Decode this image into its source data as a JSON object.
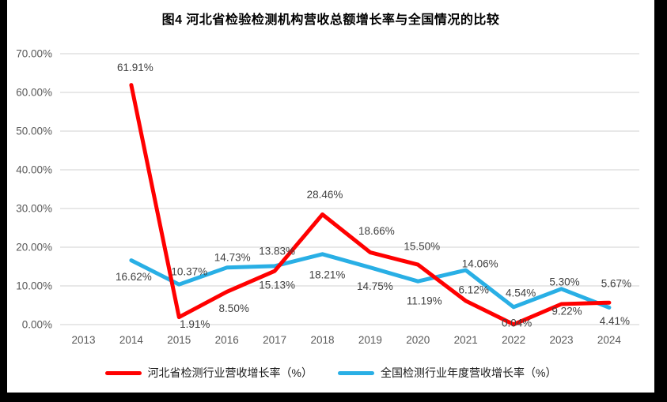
{
  "title": "图4 河北省检验检测机构营收总额增长率与全国情况的比较",
  "colors": {
    "frame_bg": "#000000",
    "canvas_bg": "#FFFFFF",
    "grid": "#D9D9D9",
    "axis_tick_text": "#595959",
    "data_label_text": "#404040"
  },
  "chart_data": {
    "type": "line",
    "title": "图4 河北省检验检测机构营收总额增长率与全国情况的比较",
    "categories": [
      "2013",
      "2014",
      "2015",
      "2016",
      "2017",
      "2018",
      "2019",
      "2020",
      "2021",
      "2022",
      "2023",
      "2024"
    ],
    "yticks": [
      "0.00%",
      "10.00%",
      "20.00%",
      "30.00%",
      "40.00%",
      "50.00%",
      "60.00%",
      "70.00%"
    ],
    "ylim": [
      0,
      70
    ],
    "grid": true,
    "legend_position": "bottom",
    "series": [
      {
        "name": "河北省检测行业营收增长率（%）",
        "color": "#FF0000",
        "values": [
          null,
          61.91,
          1.91,
          8.5,
          13.83,
          28.46,
          18.66,
          15.5,
          6.12,
          0.04,
          5.3,
          5.67
        ],
        "labels": [
          null,
          "61.91%",
          "1.91%",
          "8.50%",
          "13.83%",
          "28.46%",
          "18.66%",
          "15.50%",
          "6.12%",
          "0.04%",
          "5.30%",
          "5.67%"
        ],
        "label_offsets": [
          null,
          [
            5,
            -22
          ],
          [
            20,
            9
          ],
          [
            9,
            21
          ],
          [
            3,
            -25
          ],
          [
            3,
            -25
          ],
          [
            8,
            -27
          ],
          [
            5,
            -23
          ],
          [
            10,
            -14
          ],
          [
            4,
            -2
          ],
          [
            4,
            -28
          ],
          [
            9,
            -24
          ]
        ]
      },
      {
        "name": "全国检测行业年度营收增长率（%）",
        "color": "#29AFE5",
        "values": [
          null,
          16.62,
          10.37,
          14.73,
          15.13,
          18.21,
          14.75,
          11.19,
          14.06,
          4.54,
          9.22,
          4.41
        ],
        "labels": [
          null,
          "16.62%",
          "10.37%",
          "14.73%",
          "15.13%",
          "18.21%",
          "14.75%",
          "11.19%",
          "14.06%",
          "4.54%",
          "9.22%",
          "4.41%"
        ],
        "label_offsets": [
          null,
          [
            3,
            21
          ],
          [
            13,
            -16
          ],
          [
            7,
            -13
          ],
          [
            3,
            24
          ],
          [
            6,
            26
          ],
          [
            6,
            24
          ],
          [
            8,
            25
          ],
          [
            18,
            -8
          ],
          [
            9,
            -18
          ],
          [
            7,
            28
          ],
          [
            7,
            17
          ]
        ]
      }
    ]
  }
}
